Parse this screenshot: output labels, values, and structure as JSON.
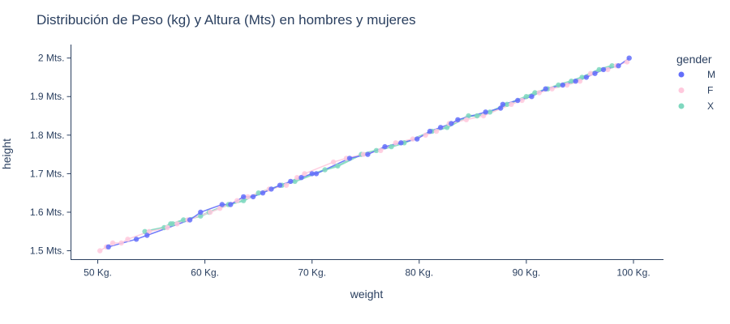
{
  "chart_data": {
    "type": "scatter",
    "title": "Distribución de Peso (kg) y Altura (Mts) en hombres y mujeres",
    "xlabel": "weight",
    "ylabel": "height",
    "xlim": [
      47.5,
      102.8
    ],
    "ylim": [
      1.477,
      2.035
    ],
    "x_ticks": [
      {
        "value": 50,
        "label": "50 Kg."
      },
      {
        "value": 60,
        "label": "60 Kg."
      },
      {
        "value": 70,
        "label": "70 Kg."
      },
      {
        "value": 80,
        "label": "80 Kg."
      },
      {
        "value": 90,
        "label": "90 Kg."
      },
      {
        "value": 100,
        "label": "100 Kg."
      }
    ],
    "y_ticks": [
      {
        "value": 1.5,
        "label": "1.5 Mts."
      },
      {
        "value": 1.6,
        "label": "1.6 Mts."
      },
      {
        "value": 1.7,
        "label": "1.7 Mts."
      },
      {
        "value": 1.8,
        "label": "1.8 Mts."
      },
      {
        "value": 1.9,
        "label": "1.9 Mts."
      },
      {
        "value": 2.0,
        "label": "2 Mts."
      }
    ],
    "grid": false,
    "legend": {
      "title": "gender",
      "position": "right"
    },
    "series": [
      {
        "name": "M",
        "color": "#636efa",
        "points": [
          [
            51.0,
            1.51
          ],
          [
            53.6,
            1.53
          ],
          [
            54.6,
            1.54
          ],
          [
            58.6,
            1.58
          ],
          [
            59.6,
            1.6
          ],
          [
            61.6,
            1.62
          ],
          [
            62.4,
            1.62
          ],
          [
            63.6,
            1.64
          ],
          [
            64.5,
            1.64
          ],
          [
            65.4,
            1.65
          ],
          [
            66.2,
            1.66
          ],
          [
            67.0,
            1.67
          ],
          [
            68.0,
            1.68
          ],
          [
            69.0,
            1.69
          ],
          [
            70.0,
            1.7
          ],
          [
            70.4,
            1.7
          ],
          [
            73.5,
            1.74
          ],
          [
            75.2,
            1.75
          ],
          [
            76.8,
            1.77
          ],
          [
            78.3,
            1.78
          ],
          [
            79.8,
            1.79
          ],
          [
            81.0,
            1.81
          ],
          [
            82.0,
            1.82
          ],
          [
            83.0,
            1.83
          ],
          [
            83.6,
            1.84
          ],
          [
            86.2,
            1.86
          ],
          [
            87.6,
            1.87
          ],
          [
            87.8,
            1.88
          ],
          [
            89.2,
            1.89
          ],
          [
            90.5,
            1.9
          ],
          [
            91.8,
            1.92
          ],
          [
            93.4,
            1.93
          ],
          [
            94.6,
            1.94
          ],
          [
            95.6,
            1.95
          ],
          [
            96.4,
            1.96
          ],
          [
            97.2,
            1.97
          ],
          [
            98.6,
            1.98
          ],
          [
            99.6,
            2.0
          ]
        ]
      },
      {
        "name": "F",
        "color": "#ffc9dd",
        "points": [
          [
            50.2,
            1.5
          ],
          [
            50.8,
            1.51
          ],
          [
            51.4,
            1.52
          ],
          [
            52.2,
            1.52
          ],
          [
            52.8,
            1.53
          ],
          [
            54.8,
            1.55
          ],
          [
            56.5,
            1.56
          ],
          [
            57.4,
            1.57
          ],
          [
            58.4,
            1.58
          ],
          [
            60.5,
            1.6
          ],
          [
            61.4,
            1.61
          ],
          [
            63.0,
            1.63
          ],
          [
            64.0,
            1.64
          ],
          [
            66.0,
            1.66
          ],
          [
            67.6,
            1.67
          ],
          [
            68.6,
            1.69
          ],
          [
            69.3,
            1.7
          ],
          [
            72.0,
            1.73
          ],
          [
            73.2,
            1.74
          ],
          [
            74.8,
            1.75
          ],
          [
            76.4,
            1.76
          ],
          [
            77.8,
            1.78
          ],
          [
            79.4,
            1.79
          ],
          [
            80.6,
            1.8
          ],
          [
            81.6,
            1.81
          ],
          [
            82.8,
            1.83
          ],
          [
            84.4,
            1.84
          ],
          [
            86.0,
            1.85
          ],
          [
            88.6,
            1.88
          ],
          [
            89.6,
            1.89
          ],
          [
            91.2,
            1.91
          ],
          [
            92.4,
            1.92
          ],
          [
            93.8,
            1.93
          ],
          [
            95.0,
            1.94
          ],
          [
            96.0,
            1.96
          ],
          [
            97.6,
            1.97
          ],
          [
            98.4,
            1.98
          ],
          [
            99.4,
            1.99
          ]
        ]
      },
      {
        "name": "X",
        "color": "#7fd8bf",
        "points": [
          [
            54.4,
            1.55
          ],
          [
            56.2,
            1.56
          ],
          [
            56.8,
            1.57
          ],
          [
            57.0,
            1.57
          ],
          [
            58.0,
            1.58
          ],
          [
            59.6,
            1.59
          ],
          [
            60.4,
            1.6
          ],
          [
            62.2,
            1.62
          ],
          [
            63.6,
            1.63
          ],
          [
            65.0,
            1.65
          ],
          [
            67.2,
            1.67
          ],
          [
            68.4,
            1.68
          ],
          [
            71.2,
            1.71
          ],
          [
            72.4,
            1.72
          ],
          [
            74.6,
            1.75
          ],
          [
            76.0,
            1.76
          ],
          [
            77.4,
            1.77
          ],
          [
            78.6,
            1.78
          ],
          [
            81.2,
            1.81
          ],
          [
            82.6,
            1.82
          ],
          [
            84.6,
            1.85
          ],
          [
            85.4,
            1.85
          ],
          [
            86.6,
            1.86
          ],
          [
            88.2,
            1.88
          ],
          [
            90.0,
            1.9
          ],
          [
            90.8,
            1.91
          ],
          [
            92.0,
            1.92
          ],
          [
            93.0,
            1.93
          ],
          [
            94.2,
            1.94
          ],
          [
            95.2,
            1.95
          ],
          [
            96.8,
            1.97
          ],
          [
            98.0,
            1.98
          ]
        ]
      }
    ]
  }
}
